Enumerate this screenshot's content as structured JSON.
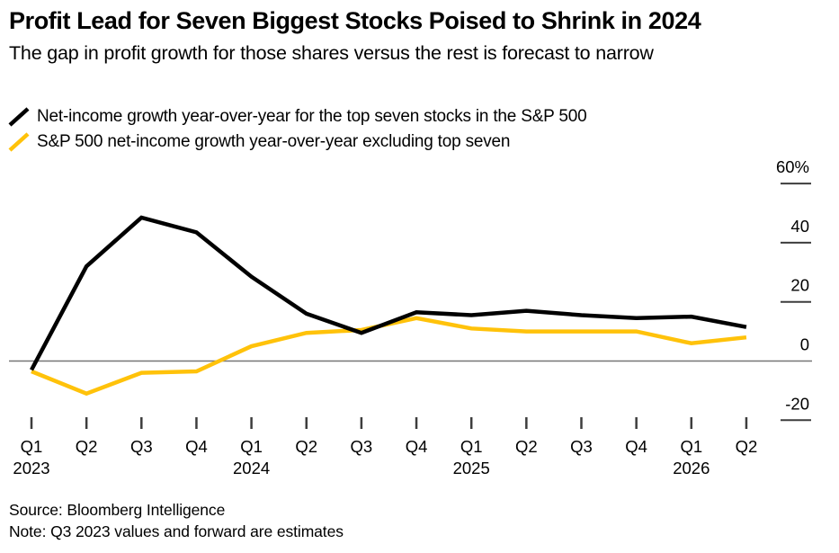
{
  "chart_data": {
    "type": "line",
    "title": "Profit Lead for Seven Biggest Stocks Poised to Shrink in 2024",
    "subtitle": "The gap in profit growth for those shares versus the rest is forecast to narrow",
    "categories": [
      "Q1 2023",
      "Q2 2023",
      "Q3 2023",
      "Q4 2023",
      "Q1 2024",
      "Q2 2024",
      "Q3 2024",
      "Q4 2024",
      "Q1 2025",
      "Q2 2025",
      "Q3 2025",
      "Q4 2025",
      "Q1 2026",
      "Q2 2026"
    ],
    "x_tick_labels": [
      "Q1",
      "Q2",
      "Q3",
      "Q4",
      "Q1",
      "Q2",
      "Q3",
      "Q4",
      "Q1",
      "Q2",
      "Q3",
      "Q4",
      "Q1",
      "Q2"
    ],
    "year_labels": [
      {
        "index": 0,
        "label": "2023"
      },
      {
        "index": 4,
        "label": "2024"
      },
      {
        "index": 8,
        "label": "2025"
      },
      {
        "index": 12,
        "label": "2026"
      }
    ],
    "series": [
      {
        "name": "Net-income growth year-over-year for the top seven stocks in the S&P 500",
        "color": "#000000",
        "values": [
          -3,
          32,
          48.5,
          43.5,
          28.5,
          16,
          9.5,
          16.5,
          15.5,
          17,
          15.5,
          14.5,
          15,
          11.5
        ]
      },
      {
        "name": "S&P 500 net-income growth year-over-year excluding top seven",
        "color": "#FFC20A",
        "values": [
          -3.5,
          -11,
          -4,
          -3.5,
          5,
          9.5,
          10.5,
          14.5,
          11,
          10,
          10,
          10,
          6,
          8
        ]
      }
    ],
    "y_axis": {
      "ticks": [
        60,
        40,
        20,
        0,
        -20
      ],
      "tick_labels": [
        "60%",
        "40",
        "20",
        "0",
        "-20"
      ],
      "range": [
        -25,
        62
      ],
      "side": "right",
      "unit": "percent-yoy-growth"
    },
    "zero_line": true,
    "grid": false,
    "legend_position": "top-left"
  },
  "footer": {
    "source": "Source: Bloomberg Intelligence",
    "note": "Note: Q3 2023 values and forward are estimates"
  },
  "colors": {
    "axis_tick": "#3d3d3d",
    "zero_line": "#757575",
    "text": "#000000"
  }
}
